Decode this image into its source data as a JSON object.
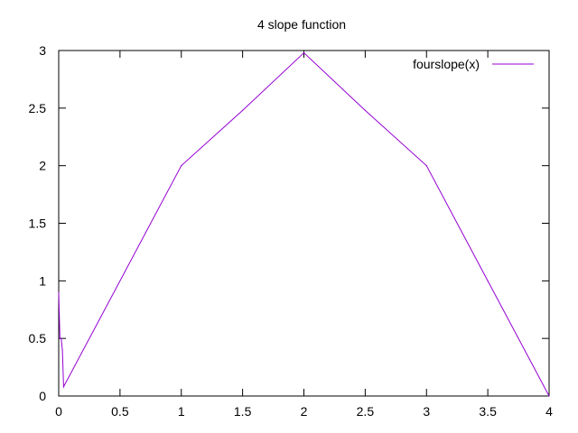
{
  "chart_data": {
    "type": "line",
    "title": "4 slope function",
    "xlabel": "",
    "ylabel": "",
    "xlim": [
      0,
      4
    ],
    "ylim": [
      0,
      3
    ],
    "xticks": [
      "0",
      "0.5",
      "1",
      "1.5",
      "2",
      "2.5",
      "3",
      "3.5",
      "4"
    ],
    "yticks": [
      "0",
      "0.5",
      "1",
      "1.5",
      "2",
      "2.5",
      "3"
    ],
    "grid": false,
    "legend_position": "top-right",
    "series": [
      {
        "name": "fourslope(x)",
        "color": "#9400d3",
        "x": [
          0,
          0.01,
          0.02,
          0.03,
          0.04,
          1.0,
          1.5,
          2.0,
          2.5,
          3.0,
          3.5,
          4.0
        ],
        "y": [
          0.9,
          0.5,
          0.5,
          0.4,
          0.08,
          2.0,
          2.48,
          2.98,
          2.48,
          2.0,
          1.0,
          0.0
        ]
      }
    ]
  }
}
